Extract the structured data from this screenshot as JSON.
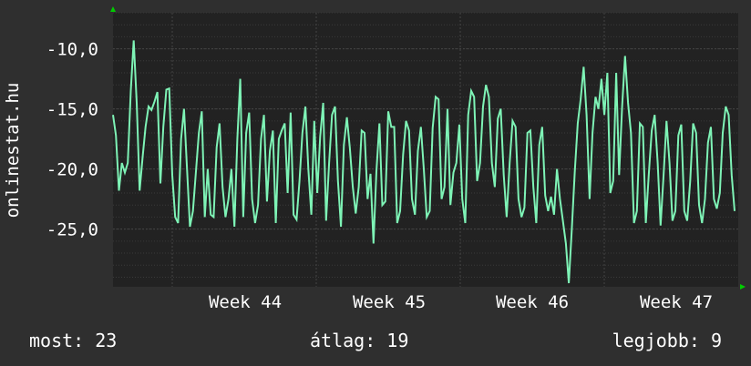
{
  "chart_data": {
    "type": "line",
    "ylabel": "onlinestat.hu",
    "ylim": [
      -29.8,
      -7.0
    ],
    "y_ticks": [
      -25,
      -20,
      -15,
      -10
    ],
    "y_tick_labels": [
      "-25,0",
      "-20,0",
      "-15,0",
      "-10,0"
    ],
    "x_ticks": [
      "Week 44",
      "Week 45",
      "Week 46",
      "Week 47"
    ],
    "grid": true,
    "colors": {
      "background": "#2f2f2f",
      "plot_area": "#222222",
      "grid": "#444444",
      "line": "#7ef3b6",
      "axis_arrow": "#00cc00"
    },
    "series": [
      {
        "values": [
          -15.5,
          -17.2,
          -21.8,
          -19.5,
          -20.3,
          -19.5,
          -13.5,
          -9.3,
          -14.5,
          -21.8,
          -19,
          -16.5,
          -14.8,
          -15.1,
          -14.4,
          -13.6,
          -21.2,
          -16.5,
          -13.4,
          -13.3,
          -20.5,
          -24,
          -24.5,
          -17.5,
          -15,
          -20,
          -24.8,
          -23.5,
          -20.3,
          -17,
          -15.2,
          -24,
          -20,
          -23.8,
          -24,
          -18.2,
          -16.2,
          -21.5,
          -24,
          -22.5,
          -20,
          -24.8,
          -17.5,
          -12.5,
          -24,
          -17,
          -15.3,
          -22.5,
          -24.5,
          -23,
          -17.5,
          -15.5,
          -22.7,
          -18.5,
          -16.8,
          -24.5,
          -17.5,
          -16.8,
          -16.2,
          -22,
          -15.3,
          -23.8,
          -24.2,
          -21,
          -17,
          -14.8,
          -20,
          -23.8,
          -16,
          -22,
          -17.3,
          -14.5,
          -24.3,
          -19.5,
          -15.5,
          -14.8,
          -21,
          -24.8,
          -18,
          -15.7,
          -18.2,
          -21.5,
          -23.7,
          -21.5,
          -16.8,
          -17,
          -22.5,
          -20.4,
          -26.2,
          -20.2,
          -16.2,
          -23,
          -22.7,
          -15.2,
          -16.5,
          -16.5,
          -24.5,
          -23.5,
          -18.8,
          -16,
          -16.8,
          -22.5,
          -23.8,
          -18.5,
          -16.5,
          -20,
          -24,
          -23.5,
          -16.6,
          -14,
          -14.2,
          -22.5,
          -21.5,
          -15,
          -23,
          -20.3,
          -19.5,
          -16.3,
          -22.5,
          -24.5,
          -15.5,
          -13.5,
          -14,
          -21,
          -19.5,
          -14.8,
          -13,
          -14,
          -19.5,
          -21.5,
          -15.8,
          -15,
          -20.5,
          -24,
          -19.5,
          -16,
          -16.5,
          -22.5,
          -24,
          -23.2,
          -17,
          -16.8,
          -21.5,
          -24.5,
          -18,
          -16.5,
          -22.2,
          -23.5,
          -22.3,
          -23.8,
          -20,
          -22.5,
          -24.3,
          -26.2,
          -29.5,
          -25,
          -20.3,
          -16.2,
          -14.2,
          -11.5,
          -15.5,
          -22.5,
          -17,
          -14,
          -15,
          -12.5,
          -15.5,
          -12,
          -22,
          -21,
          -12,
          -20.5,
          -14.8,
          -10.6,
          -14.5,
          -17,
          -24.5,
          -23.5,
          -16.2,
          -16.5,
          -24.5,
          -20.5,
          -16.8,
          -15.5,
          -19.5,
          -24.7,
          -20.5,
          -16,
          -19.5,
          -24.3,
          -23.5,
          -17.2,
          -16.3,
          -23.5,
          -24.3,
          -21,
          -16.2,
          -17,
          -23,
          -24.5,
          -22.5,
          -17.8,
          -16.5,
          -22.5,
          -23.3,
          -22,
          -17,
          -14.8,
          -15.5,
          -20.5,
          -23.5
        ]
      }
    ]
  },
  "footer": {
    "most": "most: 23",
    "avg": "átlag: 19",
    "best": "legjobb: 9"
  }
}
